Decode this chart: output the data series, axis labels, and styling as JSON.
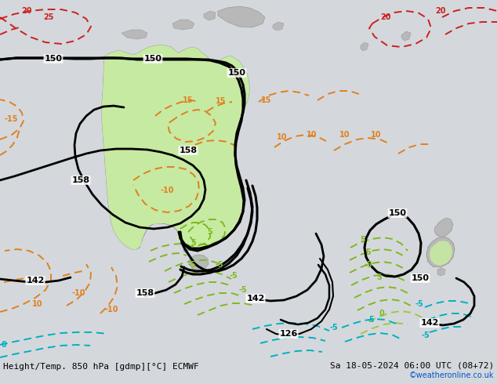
{
  "title_left": "Height/Temp. 850 hPa [gdmp][°C] ECMWF",
  "title_right": "Sa 18-05-2024 06:00 UTC (08+72)",
  "credit": "©weatheronline.co.uk",
  "bg_color": "#d4d8dc",
  "land_color": "#b8b8b8",
  "highlight_color": "#c8f0a0",
  "ocean_color": "#d4d8dc",
  "black_line_color": "#000000",
  "orange_color": "#e08020",
  "red_color": "#cc2020",
  "green_color": "#80b820",
  "cyan_color": "#00b0c0",
  "label_fontsize": 7,
  "title_fontsize": 8,
  "credit_fontsize": 7
}
